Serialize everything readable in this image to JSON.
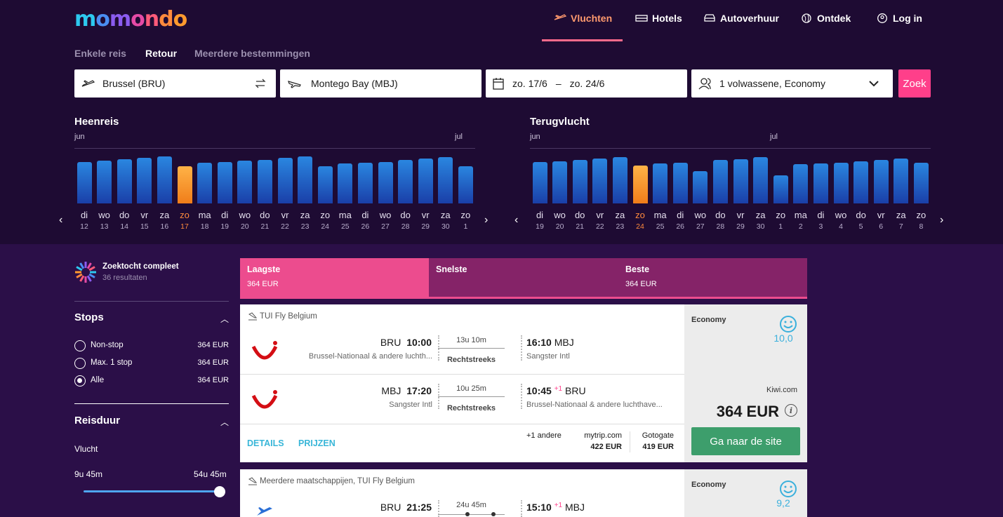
{
  "brand": {
    "logo": "momondo",
    "letters": [
      "m",
      "o",
      "m",
      "o",
      "n",
      "d",
      "o"
    ],
    "letter_colors": [
      "#2dc9ef",
      "#4a8ef2",
      "#8b5cf0",
      "#e54aa5",
      "#ff5b7a",
      "#ff8a3d",
      "#ff9a2e"
    ]
  },
  "nav": {
    "flights": "Vluchten",
    "hotels": "Hotels",
    "cars": "Autoverhuur",
    "discover": "Ontdek",
    "login": "Log in"
  },
  "trip_types": [
    "Enkele reis",
    "Retour",
    "Meerdere bestemmingen"
  ],
  "search": {
    "origin": "Brussel (BRU)",
    "destination": "Montego Bay (MBJ)",
    "dates_from": "zo. 17/6",
    "dates_sep": "–",
    "dates_to": "zo. 24/6",
    "travellers": "1 volwassene, Economy",
    "submit": "Zoek"
  },
  "calendar_out": {
    "title": "Heenreis",
    "month_start": "jun",
    "month_end": "jul",
    "days": [
      "di",
      "wo",
      "do",
      "vr",
      "za",
      "zo",
      "ma",
      "di",
      "wo",
      "do",
      "vr",
      "za",
      "zo",
      "ma",
      "di",
      "wo",
      "do",
      "vr",
      "za",
      "zo"
    ],
    "dates": [
      "12",
      "13",
      "14",
      "15",
      "16",
      "17",
      "18",
      "19",
      "20",
      "21",
      "22",
      "23",
      "24",
      "25",
      "26",
      "27",
      "28",
      "29",
      "30",
      "1"
    ],
    "levels": [
      0.74,
      0.76,
      0.79,
      0.81,
      0.84,
      0.66,
      0.73,
      0.74,
      0.76,
      0.78,
      0.81,
      0.84,
      0.66,
      0.71,
      0.72,
      0.74,
      0.78,
      0.8,
      0.82,
      0.66
    ],
    "selected_index": 5
  },
  "calendar_ret": {
    "title": "Terugvlucht",
    "month_start": "jun",
    "month_end": "jul",
    "days": [
      "di",
      "wo",
      "do",
      "vr",
      "za",
      "zo",
      "ma",
      "di",
      "wo",
      "do",
      "vr",
      "za",
      "zo",
      "ma",
      "di",
      "wo",
      "do",
      "vr",
      "za",
      "zo"
    ],
    "dates": [
      "19",
      "20",
      "21",
      "22",
      "23",
      "24",
      "25",
      "26",
      "27",
      "28",
      "29",
      "30",
      "1",
      "2",
      "3",
      "4",
      "5",
      "6",
      "7",
      "8"
    ],
    "levels": [
      0.74,
      0.75,
      0.78,
      0.8,
      0.83,
      0.67,
      0.71,
      0.72,
      0.58,
      0.77,
      0.79,
      0.82,
      0.5,
      0.7,
      0.71,
      0.73,
      0.75,
      0.78,
      0.8,
      0.72
    ],
    "selected_index": 5
  },
  "sidebar": {
    "status_title": "Zoektocht compleet",
    "status_sub": "36 resultaten",
    "stops_title": "Stops",
    "stops": [
      {
        "label": "Non-stop",
        "price": "364 EUR"
      },
      {
        "label": "Max. 1 stop",
        "price": "364 EUR"
      },
      {
        "label": "Alle",
        "price": "364 EUR"
      }
    ],
    "duration_title": "Reisduur",
    "duration_sub": "Vlucht",
    "duration_min": "9u 45m",
    "duration_max": "54u 45m"
  },
  "sort_tabs": [
    {
      "label": "Laagste",
      "price": "364 EUR"
    },
    {
      "label": "Snelste",
      "price": ""
    },
    {
      "label": "Beste",
      "price": "364 EUR"
    }
  ],
  "results": [
    {
      "airline": "TUI Fly Belgium",
      "out": {
        "from_code": "BRU",
        "dep": "10:00",
        "from_name": "Brussel-Nationaal & andere luchth...",
        "duration": "13u 10m",
        "stops": "Rechtstreeks",
        "arr": "16:10",
        "to_code": "MBJ",
        "to_name": "Sangster Intl"
      },
      "ret": {
        "from_code": "MBJ",
        "dep": "17:20",
        "from_name": "Sangster Intl",
        "duration": "10u 25m",
        "stops": "Rechtstreeks",
        "arr": "10:45",
        "plus": "+1",
        "to_code": "BRU",
        "to_name": "Brussel-Nationaal & andere luchthave..."
      },
      "details": "DETAILS",
      "prices": "PRIJZEN",
      "others": "+1 andere",
      "providers": [
        {
          "name": "mytrip.com",
          "price": "422 EUR"
        },
        {
          "name": "Gotogate",
          "price": "419 EUR"
        }
      ],
      "cabin": "Economy",
      "score": "10,0",
      "site": "Kiwi.com",
      "price": "364 EUR",
      "cta": "Ga naar de site"
    },
    {
      "airline": "Meerdere maatschappijen, TUI Fly Belgium",
      "out": {
        "from_code": "BRU",
        "dep": "21:25",
        "duration": "24u 45m",
        "arr": "15:10",
        "plus": "+1",
        "to_code": "MBJ"
      },
      "cabin": "Economy",
      "score": "9,2"
    }
  ]
}
